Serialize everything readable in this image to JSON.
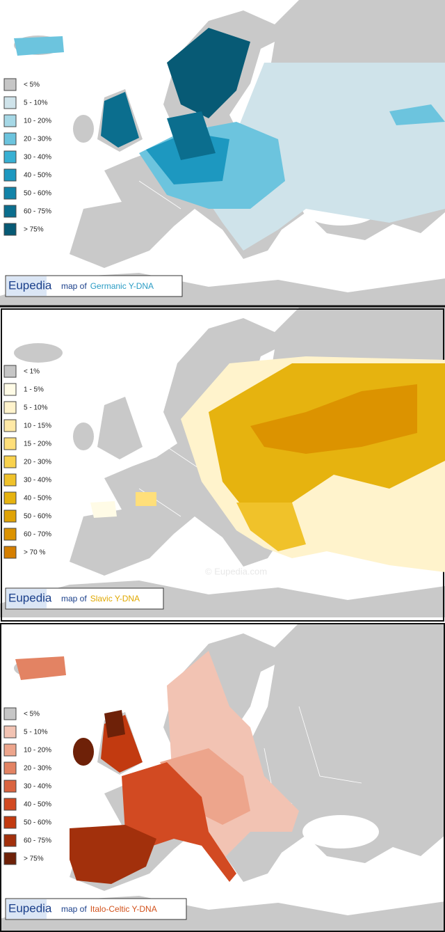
{
  "maps": [
    {
      "legend": [
        {
          "label": "< 5%",
          "color": "#c6c6c6"
        },
        {
          "label": "5 - 10%",
          "color": "#cfe3ea"
        },
        {
          "label": "10 - 20%",
          "color": "#a6d8e6"
        },
        {
          "label": "20 - 30%",
          "color": "#6cc4de"
        },
        {
          "label": "30 - 40%",
          "color": "#38b0d3"
        },
        {
          "label": "40 - 50%",
          "color": "#1d98c0"
        },
        {
          "label": "50 - 60%",
          "color": "#1283a8"
        },
        {
          "label": "60 - 75%",
          "color": "#0b6e8e"
        },
        {
          "label": "> 75%",
          "color": "#075a75"
        }
      ],
      "brand": "Eupedia",
      "caption_prefix": "map of",
      "subject": "Germanic Y-DNA",
      "subject_color": "#2a9cc4"
    },
    {
      "legend": [
        {
          "label": "< 1%",
          "color": "#c6c6c6"
        },
        {
          "label": "1 - 5%",
          "color": "#fffbe6"
        },
        {
          "label": "5 - 10%",
          "color": "#fff3cc"
        },
        {
          "label": "10 - 15%",
          "color": "#ffe9a6"
        },
        {
          "label": "15 - 20%",
          "color": "#ffdf7a"
        },
        {
          "label": "20 - 30%",
          "color": "#f9d24d"
        },
        {
          "label": "30 - 40%",
          "color": "#f0c22a"
        },
        {
          "label": "40 - 50%",
          "color": "#e6b30f"
        },
        {
          "label": "50 - 60%",
          "color": "#e0a306"
        },
        {
          "label": "60 - 70%",
          "color": "#dc9300"
        },
        {
          "label": "> 70 %",
          "color": "#d57f00"
        }
      ],
      "brand": "Eupedia",
      "caption_prefix": "map of",
      "subject": "Slavic Y-DNA",
      "subject_color": "#e0a800",
      "watermark": "© Eupedia.com"
    },
    {
      "legend": [
        {
          "label": "< 5%",
          "color": "#c6c6c6"
        },
        {
          "label": "5 - 10%",
          "color": "#f2c3b3"
        },
        {
          "label": "10 - 20%",
          "color": "#eda58c"
        },
        {
          "label": "20 - 30%",
          "color": "#e38363"
        },
        {
          "label": "30 - 40%",
          "color": "#da6440"
        },
        {
          "label": "40 - 50%",
          "color": "#d24a22"
        },
        {
          "label": "50 - 60%",
          "color": "#c23a10"
        },
        {
          "label": "60 - 75%",
          "color": "#a2300c"
        },
        {
          "label": "> 75%",
          "color": "#6e2108"
        }
      ],
      "brand": "Eupedia",
      "caption_prefix": "map of",
      "subject": "Italo-Celtic Y-DNA",
      "subject_color": "#d2521c"
    }
  ]
}
